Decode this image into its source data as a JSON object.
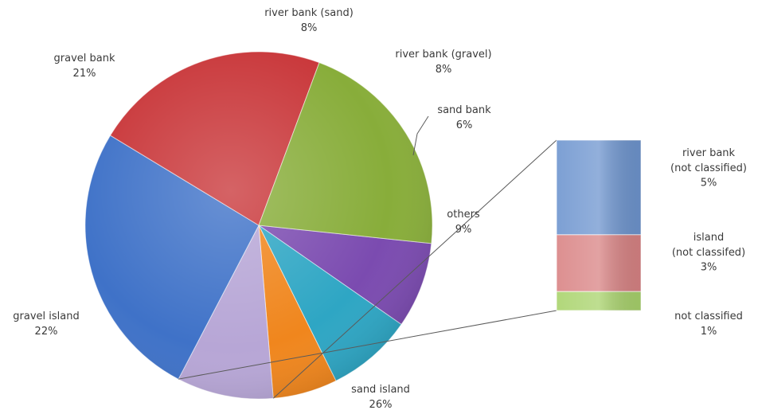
{
  "chart_data": {
    "type": "pie",
    "title": "",
    "slices": [
      {
        "label": "river bank (sand)",
        "pct": "8%",
        "value": 8,
        "color": "#7b4bb0"
      },
      {
        "label": "river bank (gravel)",
        "pct": "8%",
        "value": 8,
        "color": "#2ea6c4"
      },
      {
        "label": "sand bank",
        "pct": "6%",
        "value": 6,
        "color": "#f0861d"
      },
      {
        "label": "others",
        "pct": "9%",
        "value": 9,
        "color": "#b7a6d6"
      },
      {
        "label": "sand island",
        "pct": "26%",
        "value": 26,
        "color": "#3f72c8"
      },
      {
        "label": "gravel island",
        "pct": "22%",
        "value": 22,
        "color": "#c9373a"
      },
      {
        "label": "gravel bank",
        "pct": "21%",
        "value": 21,
        "color": "#88ad3a"
      }
    ],
    "breakdown": {
      "of": "others",
      "items": [
        {
          "label_lines": [
            "river bank",
            "(not classified)"
          ],
          "pct": "5%",
          "value": 5,
          "color": "#6e95cf"
        },
        {
          "label_lines": [
            "island",
            "(not classifed)"
          ],
          "pct": "3%",
          "value": 3,
          "color": "#d98384"
        },
        {
          "label_lines": [
            "not classified"
          ],
          "pct": "1%",
          "value": 1,
          "color": "#a9d36c"
        }
      ]
    }
  }
}
